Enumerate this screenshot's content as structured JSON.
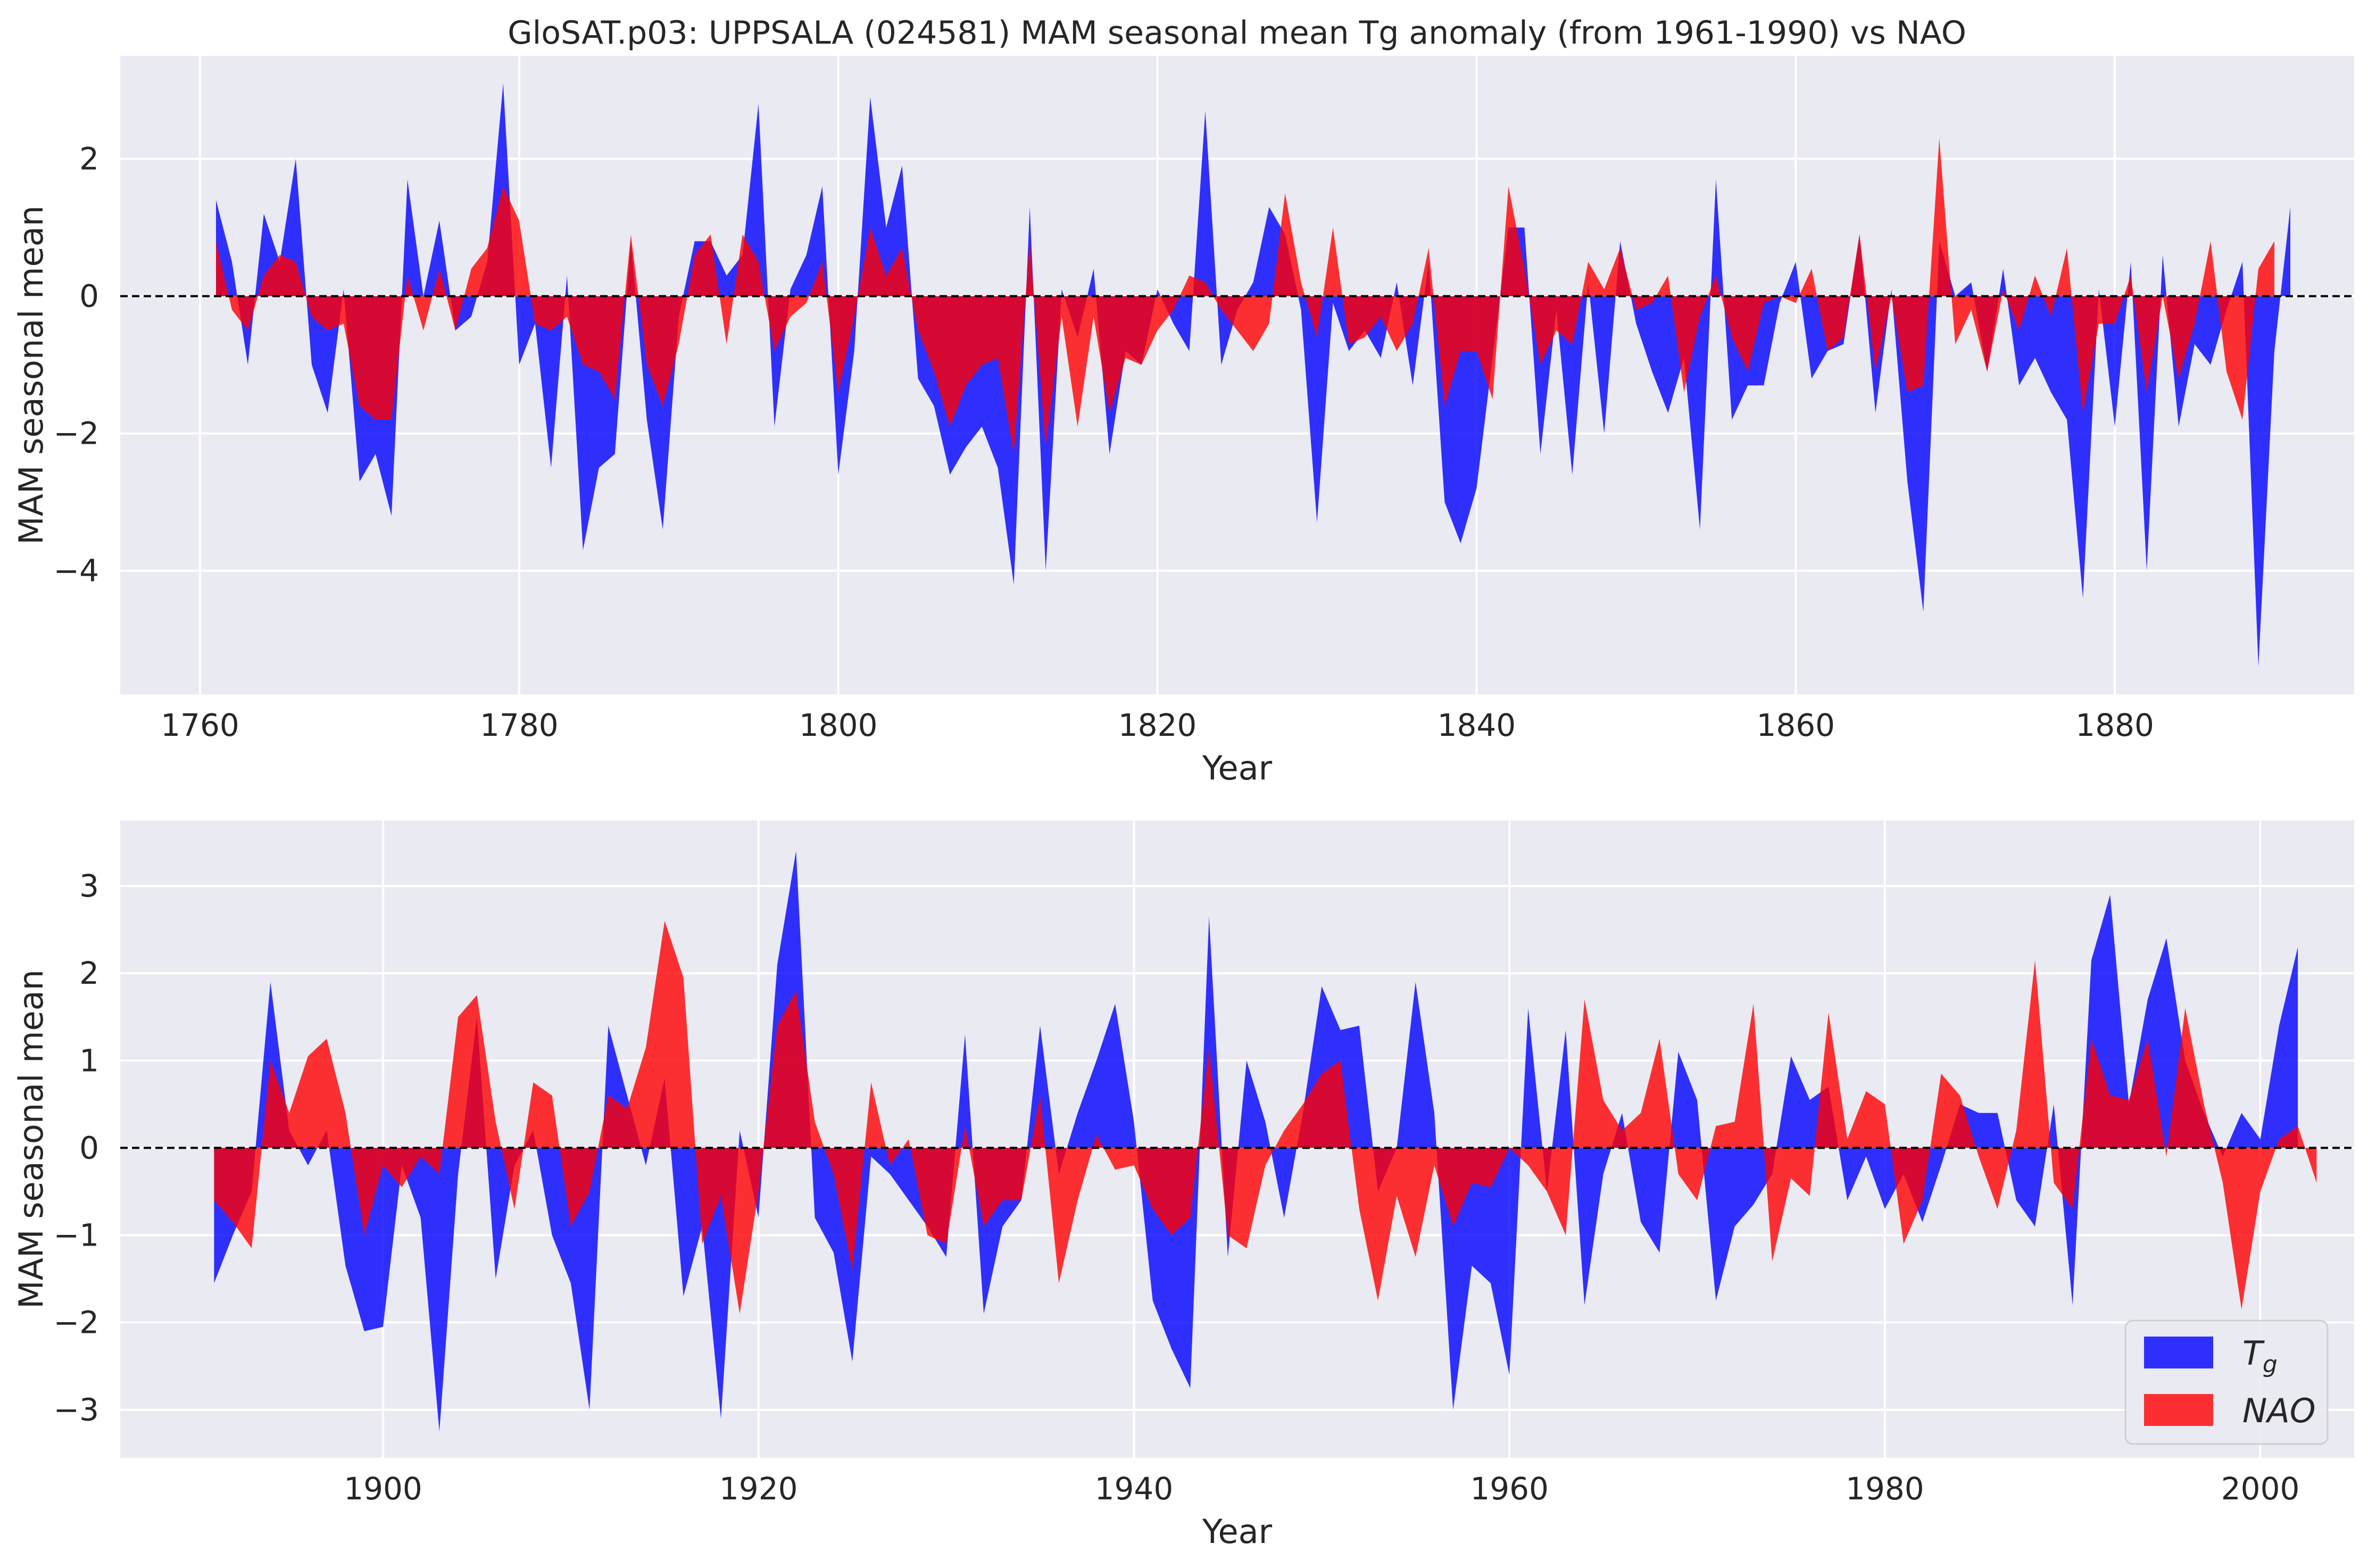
{
  "colors": {
    "tg": "#0000ff",
    "nao": "#ff0000",
    "plot_bg": "#eaeaf2",
    "overlap": "#d40030"
  },
  "chart_data": [
    {
      "type": "area",
      "title": "GloSAT.p03: UPPSALA (024581) MAM seasonal mean Tg anomaly (from 1961-1990) vs NAO",
      "xlabel": "Year",
      "ylabel": "MAM seasonal mean",
      "xlim": [
        1755,
        1895
      ],
      "ylim": [
        -5.8,
        3.5
      ],
      "xticks": [
        1760,
        1780,
        1800,
        1820,
        1840,
        1860,
        1880
      ],
      "yticks": [
        -4,
        -2,
        0,
        2
      ],
      "x_start": 1761,
      "grid": true,
      "series": [
        {
          "name": "Tg",
          "color": "#0000ff",
          "values": [
            1.4,
            0.5,
            -1.0,
            1.2,
            0.5,
            2.0,
            -1.0,
            -1.7,
            0.1,
            -2.7,
            -2.3,
            -3.2,
            1.7,
            0.0,
            1.1,
            -0.5,
            -0.3,
            0.5,
            3.1,
            -1.0,
            -0.4,
            -2.5,
            0.3,
            -3.7,
            -2.5,
            -2.3,
            0.8,
            -1.8,
            -3.4,
            -0.3,
            0.8,
            0.8,
            0.3,
            0.6,
            2.8,
            -1.9,
            0.1,
            0.6,
            1.6,
            -2.6,
            -0.8,
            2.9,
            1.0,
            1.9,
            -1.2,
            -1.6,
            -2.6,
            -2.2,
            -1.9,
            -2.5,
            -4.2,
            1.3,
            -4.0,
            0.1,
            -0.6,
            0.4,
            -2.3,
            -0.8,
            -1.0,
            0.1,
            -0.4,
            -0.8,
            2.7,
            -1.0,
            -0.2,
            0.2,
            1.3,
            0.9,
            -0.2,
            -3.3,
            -0.1,
            -0.8,
            -0.5,
            -0.9,
            0.2,
            -1.3,
            0.5,
            -3.0,
            -3.6,
            -2.8,
            -0.9,
            1.0,
            1.0,
            -2.3,
            -0.2,
            -2.6,
            0.2,
            -2.0,
            0.8,
            -0.4,
            -1.1,
            -1.7,
            -0.9,
            -3.4,
            1.7,
            -1.8,
            -1.3,
            -1.3,
            -0.1,
            0.5,
            -1.2,
            -0.8,
            -0.7,
            0.9,
            -1.7,
            0.1,
            -2.7,
            -4.6,
            0.8,
            0.0,
            0.2,
            -1.1,
            0.4,
            -1.3,
            -0.9,
            -1.4,
            -1.8,
            -4.4,
            0.1,
            -1.9,
            0.5,
            -4.0,
            0.6,
            -1.9,
            -0.7,
            -1.0,
            -0.2,
            0.5,
            -5.4,
            -0.8,
            1.3
          ]
        },
        {
          "name": "NAO",
          "color": "#ff0000",
          "values": [
            0.8,
            -0.2,
            -0.5,
            0.3,
            0.6,
            0.5,
            -0.3,
            -0.5,
            -0.4,
            -1.6,
            -1.8,
            -1.8,
            0.3,
            -0.5,
            0.4,
            -0.5,
            0.4,
            0.7,
            1.6,
            1.1,
            -0.4,
            -0.5,
            -0.3,
            -1.0,
            -1.1,
            -1.5,
            0.9,
            -1.0,
            -1.6,
            -0.7,
            0.6,
            0.9,
            -0.7,
            0.9,
            0.5,
            -0.8,
            -0.3,
            -0.1,
            0.5,
            -1.4,
            -0.3,
            1.0,
            0.3,
            0.7,
            -0.5,
            -1.1,
            -1.9,
            -1.3,
            -1.0,
            -0.9,
            -2.3,
            0.8,
            -2.2,
            -0.3,
            -1.9,
            -0.3,
            -1.7,
            -0.9,
            -1.0,
            -0.5,
            -0.2,
            0.3,
            0.2,
            -0.2,
            -0.5,
            -0.8,
            -0.4,
            1.5,
            0.2,
            -0.6,
            1.0,
            -0.7,
            -0.6,
            -0.3,
            -0.8,
            -0.4,
            0.7,
            -1.6,
            -0.8,
            -0.8,
            -1.5,
            1.6,
            0.4,
            -1.0,
            -0.5,
            -0.7,
            0.5,
            0.1,
            0.7,
            -0.2,
            -0.1,
            0.3,
            -1.4,
            -0.3,
            0.3,
            -0.6,
            -1.1,
            -0.1,
            0.0,
            -0.1,
            0.4,
            -0.8,
            -0.6,
            0.9,
            -1.1,
            0.0,
            -1.4,
            -1.3,
            2.3,
            -0.7,
            -0.2,
            -1.1,
            0.1,
            -0.5,
            0.3,
            -0.3,
            0.7,
            -1.7,
            -0.4,
            -0.4,
            0.3,
            -1.4,
            0.0,
            -1.2,
            -0.4,
            0.8,
            -1.1,
            -1.8,
            0.4,
            0.8
          ]
        }
      ]
    },
    {
      "type": "area",
      "title": "",
      "xlabel": "Year",
      "ylabel": "MAM seasonal mean",
      "xlim": [
        1886,
        2005
      ],
      "ylim": [
        -3.55,
        3.75
      ],
      "xticks": [
        1900,
        1920,
        1940,
        1960,
        1980,
        2000
      ],
      "yticks": [
        -3,
        -2,
        -1,
        0,
        1,
        2,
        3
      ],
      "x_start": 1891,
      "grid": true,
      "legend": {
        "location": "lower-right",
        "entries": [
          "Tg",
          "NAO"
        ]
      },
      "series": [
        {
          "name": "Tg",
          "color": "#0000ff",
          "values": [
            -1.55,
            -1.0,
            -0.5,
            1.9,
            0.2,
            -0.2,
            0.2,
            -1.35,
            -2.1,
            -2.05,
            -0.2,
            -0.8,
            -3.25,
            -0.3,
            1.5,
            -1.5,
            -0.2,
            0.2,
            -1.0,
            -1.55,
            -3.0,
            1.4,
            0.6,
            -0.2,
            0.8,
            -1.7,
            -0.9,
            -3.1,
            0.2,
            -0.8,
            2.1,
            3.4,
            -0.8,
            -1.2,
            -2.45,
            -0.1,
            -0.3,
            -0.6,
            -0.9,
            -1.25,
            1.3,
            -1.9,
            -0.9,
            -0.6,
            1.4,
            -0.3,
            0.4,
            1.0,
            1.65,
            0.3,
            -1.75,
            -2.3,
            -2.75,
            2.65,
            -1.25,
            1.0,
            0.3,
            -0.8,
            0.4,
            1.85,
            1.35,
            1.4,
            -0.5,
            0.0,
            1.9,
            0.4,
            -3.0,
            -1.35,
            -1.55,
            -2.6,
            1.6,
            -0.5,
            1.35,
            -1.8,
            -0.3,
            0.4,
            -0.85,
            -1.2,
            1.1,
            0.55,
            -1.75,
            -0.9,
            -0.65,
            -0.3,
            1.05,
            0.55,
            0.7,
            -0.6,
            -0.1,
            -0.7,
            -0.3,
            -0.85,
            -0.2,
            0.5,
            0.4,
            0.4,
            -0.6,
            -0.9,
            0.5,
            -1.8,
            2.15,
            2.9,
            0.5,
            1.7,
            2.4,
            1.0,
            0.4,
            -0.1,
            0.4,
            0.1,
            1.4,
            2.3
          ]
        },
        {
          "name": "NAO",
          "color": "#ff0000",
          "values": [
            -0.6,
            -0.85,
            -1.15,
            1.0,
            0.4,
            1.05,
            1.25,
            0.4,
            -1.0,
            -0.2,
            -0.45,
            -0.1,
            -0.3,
            1.5,
            1.75,
            0.3,
            -0.7,
            0.75,
            0.6,
            -0.9,
            -0.5,
            0.6,
            0.45,
            1.15,
            2.6,
            1.95,
            -1.1,
            -0.55,
            -1.9,
            -0.5,
            1.4,
            1.8,
            0.3,
            -0.3,
            -1.4,
            0.75,
            -0.2,
            0.1,
            -1.0,
            -1.1,
            0.25,
            -0.9,
            -0.6,
            -0.6,
            0.6,
            -1.55,
            -0.6,
            0.15,
            -0.25,
            -0.2,
            -0.7,
            -1.0,
            -0.8,
            1.15,
            -1.0,
            -1.15,
            -0.2,
            0.2,
            0.5,
            0.85,
            1.0,
            -0.7,
            -1.75,
            -0.55,
            -1.25,
            -0.2,
            -0.9,
            -0.4,
            -0.45,
            0.0,
            -0.2,
            -0.5,
            -1.0,
            1.7,
            0.55,
            0.2,
            0.4,
            1.25,
            -0.3,
            -0.6,
            0.25,
            0.3,
            1.65,
            -1.3,
            -0.35,
            -0.55,
            1.55,
            0.1,
            0.65,
            0.5,
            -1.1,
            -0.6,
            0.85,
            0.6,
            -0.1,
            -0.7,
            0.2,
            2.15,
            -0.4,
            -0.7,
            1.25,
            0.6,
            0.55,
            1.25,
            -0.1,
            1.6,
            0.5,
            -0.4,
            -1.85,
            -0.5,
            0.1,
            0.25,
            -0.4
          ]
        }
      ]
    }
  ]
}
